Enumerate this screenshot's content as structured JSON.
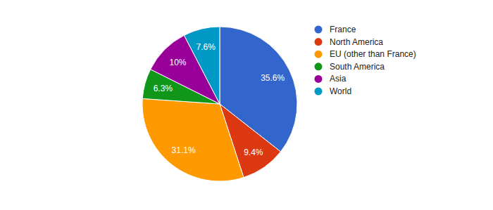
{
  "chart_data": {
    "type": "pie",
    "categories": [
      "France",
      "North America",
      "EU (other than France)",
      "South America",
      "Asia",
      "World"
    ],
    "values": [
      35.6,
      9.4,
      31.1,
      6.3,
      10,
      7.6
    ],
    "value_labels": [
      "35.6%",
      "9.4%",
      "31.1%",
      "6.3%",
      "10%",
      "7.6%"
    ],
    "colors": [
      "#3366cc",
      "#dc3912",
      "#ff9900",
      "#109618",
      "#990099",
      "#0099c6"
    ],
    "legend": "right",
    "data_labels": true
  }
}
